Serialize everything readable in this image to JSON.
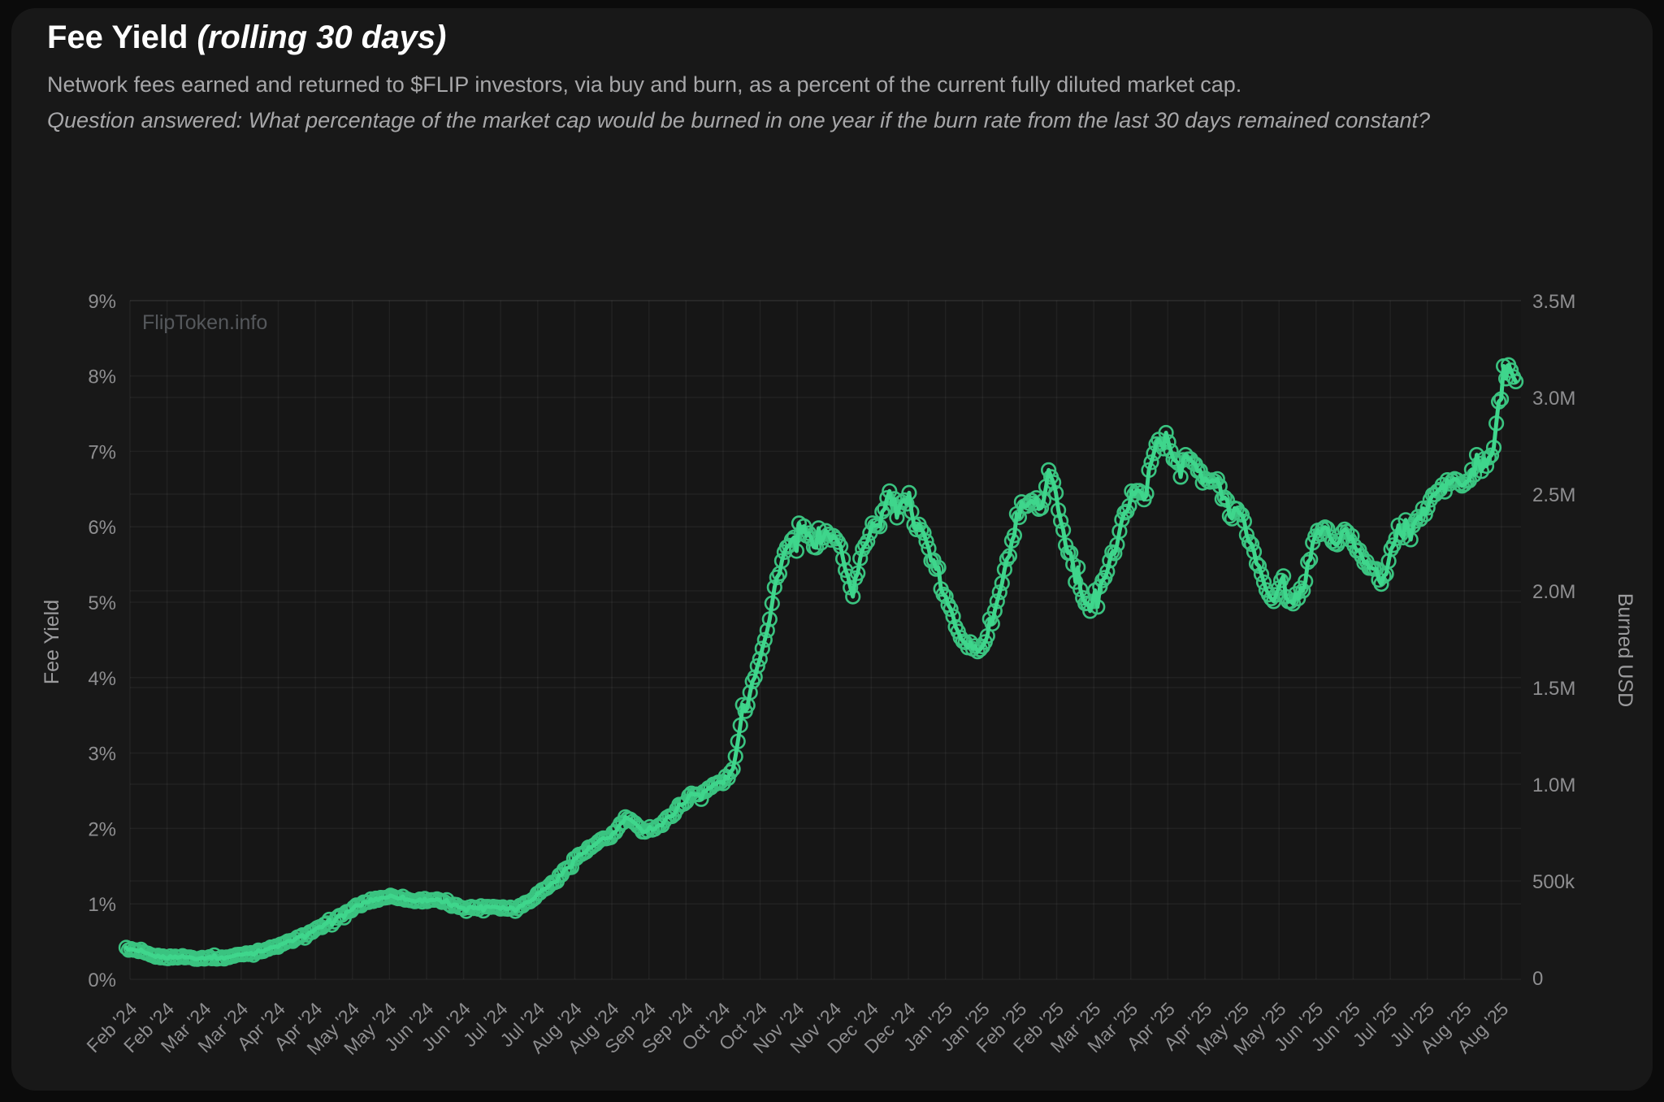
{
  "header": {
    "title": "Fee Yield ",
    "title_suffix": "(rolling 30 days)",
    "description": "Network fees earned and returned to $FLIP investors, via buy and burn, as a percent of the current fully diluted market cap.",
    "question": "Question answered: What percentage of the market cap would be burned in one year if the burn rate from the last 30 days remained constant?"
  },
  "watermark": "FlipToken.info",
  "chart_data": {
    "type": "line",
    "title": "Fee Yield (rolling 30 days)",
    "grid": true,
    "legend_position": "none",
    "line_color": "#3fd68c",
    "marker_style": "ring",
    "x_axis": {
      "tick_interval": "half-month",
      "tick_labels": [
        "Feb '24",
        "Feb '24",
        "Mar '24",
        "Mar '24",
        "Apr '24",
        "Apr '24",
        "May '24",
        "May '24",
        "Jun '24",
        "Jun '24",
        "Jul '24",
        "Jul '24",
        "Aug '24",
        "Aug '24",
        "Sep '24",
        "Sep '24",
        "Oct '24",
        "Oct '24",
        "Nov '24",
        "Nov '24",
        "Dec '24",
        "Dec '24",
        "Jan '25",
        "Jan '25",
        "Feb '25",
        "Feb '25",
        "Mar '25",
        "Mar '25",
        "Apr '25",
        "Apr '25",
        "May '25",
        "May '25",
        "Jun '25",
        "Jun '25",
        "Jul '25",
        "Jul '25",
        "Aug '25",
        "Aug '25"
      ]
    },
    "y_axis_left": {
      "label": "Fee Yield",
      "unit": "%",
      "min": 0,
      "max": 9,
      "tick_labels": [
        "0%",
        "1%",
        "2%",
        "3%",
        "4%",
        "5%",
        "6%",
        "7%",
        "8%",
        "9%"
      ]
    },
    "y_axis_right": {
      "label": "Burned USD",
      "min": 0,
      "max": 3500000,
      "tick_labels": [
        "0",
        "500k",
        "1.0M",
        "1.5M",
        "2.0M",
        "2.5M",
        "3.0M",
        "3.5M"
      ]
    },
    "series": [
      {
        "name": "Fee Yield (rolling 30 days)",
        "color": "#3fd68c",
        "t_unit": "half-months since Feb 1 2024",
        "approx": true,
        "points_t_pct": [
          [
            -0.1,
            0.41
          ],
          [
            0.3,
            0.36
          ],
          [
            0.6,
            0.31
          ],
          [
            1.0,
            0.29
          ],
          [
            1.4,
            0.3
          ],
          [
            1.8,
            0.28
          ],
          [
            2.2,
            0.29
          ],
          [
            2.5,
            0.28
          ],
          [
            2.8,
            0.31
          ],
          [
            3.1,
            0.34
          ],
          [
            3.4,
            0.36
          ],
          [
            3.7,
            0.4
          ],
          [
            4.0,
            0.44
          ],
          [
            4.3,
            0.5
          ],
          [
            4.6,
            0.56
          ],
          [
            4.9,
            0.63
          ],
          [
            5.2,
            0.7
          ],
          [
            5.5,
            0.78
          ],
          [
            5.8,
            0.87
          ],
          [
            6.1,
            0.96
          ],
          [
            6.4,
            1.03
          ],
          [
            6.7,
            1.07
          ],
          [
            7.0,
            1.1
          ],
          [
            7.3,
            1.09
          ],
          [
            7.6,
            1.04
          ],
          [
            7.9,
            1.05
          ],
          [
            8.2,
            1.06
          ],
          [
            8.5,
            1.01
          ],
          [
            8.8,
            0.97
          ],
          [
            9.1,
            0.95
          ],
          [
            9.4,
            0.95
          ],
          [
            9.8,
            0.97
          ],
          [
            10.2,
            0.94
          ],
          [
            10.5,
            0.96
          ],
          [
            10.8,
            1.05
          ],
          [
            11.1,
            1.17
          ],
          [
            11.5,
            1.31
          ],
          [
            12.0,
            1.6
          ],
          [
            12.3,
            1.7
          ],
          [
            12.6,
            1.8
          ],
          [
            12.9,
            1.88
          ],
          [
            13.1,
            1.95
          ],
          [
            13.3,
            2.1
          ],
          [
            13.45,
            2.15
          ],
          [
            13.6,
            2.05
          ],
          [
            13.8,
            1.97
          ],
          [
            14.0,
            2.0
          ],
          [
            14.2,
            2.02
          ],
          [
            14.4,
            2.07
          ],
          [
            14.6,
            2.18
          ],
          [
            14.8,
            2.28
          ],
          [
            15.0,
            2.38
          ],
          [
            15.2,
            2.46
          ],
          [
            15.35,
            2.45
          ],
          [
            15.5,
            2.5
          ],
          [
            15.7,
            2.55
          ],
          [
            15.85,
            2.6
          ],
          [
            16.0,
            2.62
          ],
          [
            16.2,
            2.72
          ],
          [
            16.35,
            2.95
          ],
          [
            16.5,
            3.5
          ],
          [
            16.65,
            3.65
          ],
          [
            16.8,
            3.95
          ],
          [
            16.95,
            4.2
          ],
          [
            17.1,
            4.5
          ],
          [
            17.25,
            4.75
          ],
          [
            17.4,
            5.2
          ],
          [
            17.55,
            5.5
          ],
          [
            17.7,
            5.7
          ],
          [
            17.9,
            5.78
          ],
          [
            18.05,
            5.88
          ],
          [
            18.2,
            5.95
          ],
          [
            18.35,
            5.82
          ],
          [
            18.5,
            5.78
          ],
          [
            18.65,
            5.85
          ],
          [
            18.8,
            5.92
          ],
          [
            18.95,
            5.85
          ],
          [
            19.1,
            5.8
          ],
          [
            19.25,
            5.6
          ],
          [
            19.4,
            5.25
          ],
          [
            19.5,
            5.12
          ],
          [
            19.7,
            5.55
          ],
          [
            19.9,
            5.85
          ],
          [
            20.05,
            6.1
          ],
          [
            20.2,
            6.0
          ],
          [
            20.35,
            6.3
          ],
          [
            20.5,
            6.45
          ],
          [
            20.65,
            6.15
          ],
          [
            20.8,
            6.25
          ],
          [
            20.95,
            6.3
          ],
          [
            21.1,
            6.25
          ],
          [
            21.25,
            6.1
          ],
          [
            21.4,
            5.9
          ],
          [
            21.55,
            5.7
          ],
          [
            21.7,
            5.48
          ],
          [
            21.85,
            5.25
          ],
          [
            22.0,
            5.05
          ],
          [
            22.15,
            4.85
          ],
          [
            22.3,
            4.68
          ],
          [
            22.45,
            4.55
          ],
          [
            22.6,
            4.45
          ],
          [
            22.75,
            4.38
          ],
          [
            22.9,
            4.36
          ],
          [
            23.05,
            4.48
          ],
          [
            23.2,
            4.65
          ],
          [
            23.35,
            4.9
          ],
          [
            23.5,
            5.2
          ],
          [
            23.65,
            5.5
          ],
          [
            23.8,
            5.8
          ],
          [
            23.95,
            6.05
          ],
          [
            24.1,
            6.2
          ],
          [
            24.25,
            6.3
          ],
          [
            24.4,
            6.25
          ],
          [
            24.55,
            6.15
          ],
          [
            24.65,
            6.4
          ],
          [
            24.8,
            6.78
          ],
          [
            24.95,
            6.5
          ],
          [
            25.1,
            6.1
          ],
          [
            25.25,
            5.8
          ],
          [
            25.4,
            5.6
          ],
          [
            25.55,
            5.35
          ],
          [
            25.7,
            5.1
          ],
          [
            25.9,
            4.92
          ],
          [
            26.05,
            5.02
          ],
          [
            26.2,
            5.2
          ],
          [
            26.35,
            5.42
          ],
          [
            26.5,
            5.6
          ],
          [
            26.65,
            5.85
          ],
          [
            26.8,
            6.1
          ],
          [
            26.95,
            6.3
          ],
          [
            27.1,
            6.5
          ],
          [
            27.25,
            6.55
          ],
          [
            27.4,
            6.35
          ],
          [
            27.55,
            6.9
          ],
          [
            27.75,
            7.1
          ],
          [
            27.9,
            7.25
          ],
          [
            28.05,
            7.0
          ],
          [
            28.2,
            6.88
          ],
          [
            28.35,
            6.85
          ],
          [
            28.5,
            6.92
          ],
          [
            28.65,
            6.85
          ],
          [
            28.8,
            6.78
          ],
          [
            28.95,
            6.58
          ],
          [
            29.1,
            6.6
          ],
          [
            29.25,
            6.62
          ],
          [
            29.4,
            6.52
          ],
          [
            29.55,
            6.35
          ],
          [
            29.7,
            6.3
          ],
          [
            29.85,
            6.22
          ],
          [
            30.0,
            6.1
          ],
          [
            30.15,
            5.9
          ],
          [
            30.3,
            5.7
          ],
          [
            30.45,
            5.45
          ],
          [
            30.6,
            5.25
          ],
          [
            30.75,
            5.1
          ],
          [
            30.9,
            5.05
          ],
          [
            31.0,
            5.15
          ],
          [
            31.1,
            5.4
          ],
          [
            31.2,
            4.95
          ],
          [
            31.35,
            5.02
          ],
          [
            31.5,
            5.1
          ],
          [
            31.65,
            5.18
          ],
          [
            31.8,
            5.55
          ],
          [
            31.95,
            5.8
          ],
          [
            32.1,
            5.95
          ],
          [
            32.25,
            6.0
          ],
          [
            32.4,
            5.85
          ],
          [
            32.5,
            5.75
          ],
          [
            32.65,
            5.85
          ],
          [
            32.8,
            5.92
          ],
          [
            32.95,
            5.85
          ],
          [
            33.1,
            5.72
          ],
          [
            33.25,
            5.6
          ],
          [
            33.4,
            5.52
          ],
          [
            33.55,
            5.5
          ],
          [
            33.7,
            5.3
          ],
          [
            33.8,
            5.12
          ],
          [
            33.95,
            5.6
          ],
          [
            34.1,
            5.8
          ],
          [
            34.25,
            5.88
          ],
          [
            34.4,
            5.92
          ],
          [
            34.55,
            6.0
          ],
          [
            34.7,
            6.08
          ],
          [
            34.85,
            6.15
          ],
          [
            35.0,
            6.25
          ],
          [
            35.15,
            6.4
          ],
          [
            35.3,
            6.48
          ],
          [
            35.45,
            6.52
          ],
          [
            35.6,
            6.58
          ],
          [
            35.75,
            6.65
          ],
          [
            35.9,
            6.52
          ],
          [
            36.05,
            6.58
          ],
          [
            36.2,
            6.7
          ],
          [
            36.35,
            6.78
          ],
          [
            36.5,
            6.82
          ],
          [
            36.65,
            6.85
          ],
          [
            36.75,
            6.88
          ],
          [
            36.85,
            7.4
          ],
          [
            36.95,
            7.65
          ],
          [
            37.05,
            7.9
          ],
          [
            37.15,
            8.08
          ],
          [
            37.25,
            8.17
          ],
          [
            37.4,
            7.98
          ]
        ]
      }
    ]
  }
}
